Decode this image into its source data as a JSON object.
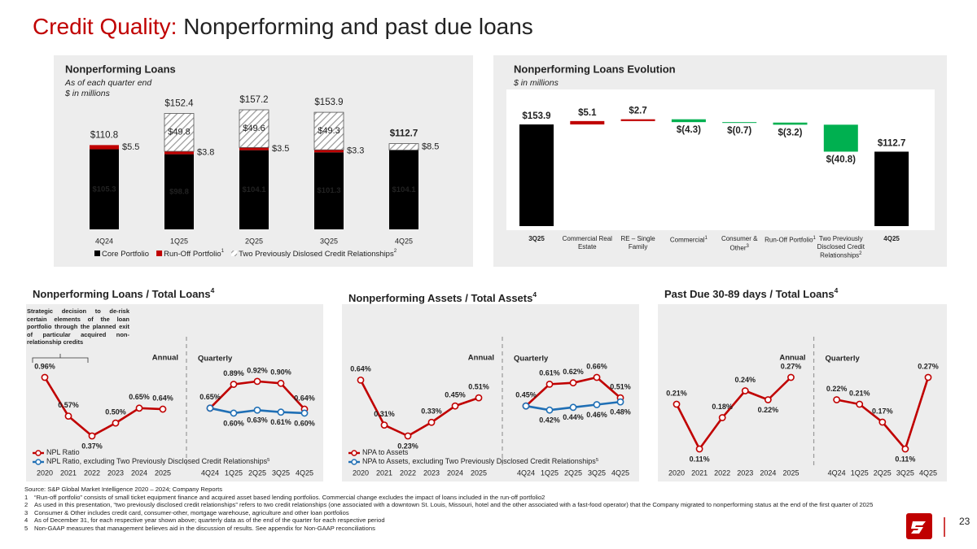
{
  "title": {
    "highlight": "Credit Quality:",
    "text": "Nonperforming and past due loans"
  },
  "chart_data": [
    {
      "type": "stacked_bar",
      "title": "Nonperforming Loans",
      "subtitle": [
        "As of each quarter end",
        "$ in millions"
      ],
      "categories": [
        "4Q24",
        "1Q25",
        "2Q25",
        "3Q25",
        "4Q25"
      ],
      "series": [
        {
          "name": "Core Portfolio",
          "color": "#000000",
          "values": [
            105.3,
            98.8,
            104.1,
            101.3,
            104.1
          ],
          "value_labels": [
            "$105.3",
            "$98.8",
            "$104.1",
            "$101.3",
            "$104.1"
          ]
        },
        {
          "name": "Run-Off Portfolio",
          "note": "1",
          "color": "#c00000",
          "values": [
            5.5,
            3.8,
            3.5,
            3.3,
            0.1
          ],
          "value_labels": [
            "$5.5",
            "$3.8",
            "$3.5",
            "$3.3",
            null
          ]
        },
        {
          "name": "Two Previously Dislosed Credit Relationships",
          "note": "2",
          "color": "#7f7f7f",
          "pattern": "hatch",
          "values": [
            null,
            49.8,
            49.6,
            49.3,
            8.5
          ],
          "value_labels": [
            null,
            "$49.8",
            "$49.6",
            "$49.3",
            "$8.5"
          ]
        }
      ],
      "totals": [
        110.8,
        152.4,
        157.2,
        153.9,
        112.7
      ],
      "total_labels": [
        "$110.8",
        "$152.4",
        "$157.2",
        "$153.9",
        "$112.7"
      ]
    },
    {
      "type": "waterfall",
      "title": "Nonperforming Loans Evolution",
      "subtitle": "$ in millions",
      "categories": [
        "3Q25",
        "Commercial Real Estate",
        "RE – Single Family",
        "Commercial",
        "Consumer & Other",
        "Run-Off Portfolio",
        "Two Previously Disclosed Credit Relationships",
        "4Q25"
      ],
      "category_notes": [
        null,
        null,
        null,
        "1",
        "3",
        "1",
        "2",
        null
      ],
      "kinds": [
        "total",
        "change",
        "change",
        "change",
        "change",
        "change",
        "change",
        "total"
      ],
      "values": [
        153.9,
        5.1,
        2.7,
        -4.3,
        -0.7,
        -3.2,
        -40.8,
        112.7
      ],
      "value_labels": [
        "$153.9",
        "$5.1",
        "$2.7",
        "$(4.3)",
        "$(0.7)",
        "$(3.2)",
        "$(40.8)",
        "$112.7"
      ],
      "colors": {
        "total": "#000000",
        "increase": "#c00000",
        "decrease": "#00b050"
      }
    },
    {
      "type": "line",
      "title": "Nonperforming Loans / Total Loans",
      "title_note": "4",
      "categories": [
        "2020",
        "2021",
        "2022",
        "2023",
        "2024",
        "2025",
        null,
        "4Q24",
        "1Q25",
        "2Q25",
        "3Q25",
        "4Q25"
      ],
      "annotations": [
        "Annual",
        "Quarterly"
      ],
      "note_text": "Strategic decision to de-risk certain elements of the loan portfolio through the planned exit of particular acquired non-relationship credits",
      "legend": true,
      "series": [
        {
          "name": "NPL Ratio",
          "color": "#c00000",
          "values": [
            0.96,
            0.57,
            0.37,
            0.5,
            0.65,
            0.64,
            null,
            0.65,
            0.89,
            0.92,
            0.9,
            0.64
          ],
          "value_labels": [
            "0.96%",
            "0.57%",
            "0.37%",
            "0.50%",
            "0.65%",
            "0.64%",
            null,
            "0.65%",
            "0.89%",
            "0.92%",
            "0.90%",
            "0.64%"
          ]
        },
        {
          "name": "NPL Ratio, excluding Two Previously Disclosed Credit Relationships",
          "note": "5",
          "color": "#1f6fb5",
          "values": [
            null,
            null,
            null,
            null,
            null,
            null,
            null,
            0.65,
            0.6,
            0.63,
            0.61,
            0.6
          ],
          "value_labels": [
            null,
            null,
            null,
            null,
            null,
            null,
            null,
            null,
            "0.60%",
            "0.63%",
            "0.61%",
            "0.60%"
          ]
        }
      ]
    },
    {
      "type": "line",
      "title": "Nonperforming Assets / Total Assets",
      "title_note": "4",
      "categories": [
        "2020",
        "2021",
        "2022",
        "2023",
        "2024",
        "2025",
        null,
        "4Q24",
        "1Q25",
        "2Q25",
        "3Q25",
        "4Q25"
      ],
      "annotations": [
        "Annual",
        "Quarterly"
      ],
      "legend": true,
      "series": [
        {
          "name": "NPA to Assets",
          "color": "#c00000",
          "values": [
            0.64,
            0.31,
            0.23,
            0.33,
            0.45,
            0.51,
            null,
            0.45,
            0.61,
            0.62,
            0.66,
            0.51
          ],
          "value_labels": [
            "0.64%",
            "0.31%",
            "0.23%",
            "0.33%",
            "0.45%",
            "0.51%",
            null,
            "0.45%",
            "0.61%",
            "0.62%",
            "0.66%",
            "0.51%"
          ]
        },
        {
          "name": "NPA to Assets, excluding Two Previously Disclosed Credit Relationships",
          "note": "5",
          "color": "#1f6fb5",
          "values": [
            null,
            null,
            null,
            null,
            null,
            null,
            null,
            0.45,
            0.42,
            0.44,
            0.46,
            0.48
          ],
          "value_labels": [
            null,
            null,
            null,
            null,
            null,
            null,
            null,
            null,
            "0.42%",
            "0.44%",
            "0.46%",
            "0.48%"
          ]
        }
      ]
    },
    {
      "type": "line",
      "title": "Past Due 30-89 days / Total Loans",
      "title_note": "4",
      "categories": [
        "2020",
        "2021",
        "2022",
        "2023",
        "2024",
        "2025",
        null,
        "4Q24",
        "1Q25",
        "2Q25",
        "3Q25",
        "4Q25"
      ],
      "annotations": [
        "Annual",
        "Quarterly"
      ],
      "legend": false,
      "series": [
        {
          "color": "#c00000",
          "values": [
            0.21,
            0.11,
            0.18,
            0.24,
            0.22,
            0.27,
            null,
            0.22,
            0.21,
            0.17,
            0.11,
            0.27
          ],
          "value_labels": [
            "0.21%",
            "0.11%",
            "0.18%",
            "0.24%",
            "0.22%",
            "0.27%",
            null,
            "0.22%",
            "0.21%",
            "0.17%",
            "0.11%",
            "0.27%"
          ]
        }
      ]
    }
  ],
  "footnotes": {
    "source": "Source: S&P Global Market Intelligence 2020 – 2024; Company Reports",
    "notes": [
      {
        "number": "1",
        "text": "“Run-off portfolio” consists of small ticket equipment finance and acquired asset based lending portfolios. Commercial change excludes the impact of loans included in the run-off portfolio2"
      },
      {
        "number": "2",
        "text": "As used in this presentation, “two previously disclosed credit relationships” refers to two credit relationships (one associated with a downtown St. Louis, Missouri, hotel and the other associated with a fast-food operator) that the Company migrated to nonperforming status at the end of the first quarter of 2025"
      },
      {
        "number": "3",
        "text": "Consumer & Other includes credit card, consumer-other, mortgage warehouse, agriculture and other loan portfolios"
      },
      {
        "number": "4",
        "text": "As of December 31, for each respective year shown above; quarterly data as of the end of the quarter for each respective period"
      },
      {
        "number": "5",
        "text": "Non-GAAP measures that management believes aid in the discussion of results. See appendix for Non-GAAP reconciliations"
      }
    ]
  },
  "page_number": "23"
}
